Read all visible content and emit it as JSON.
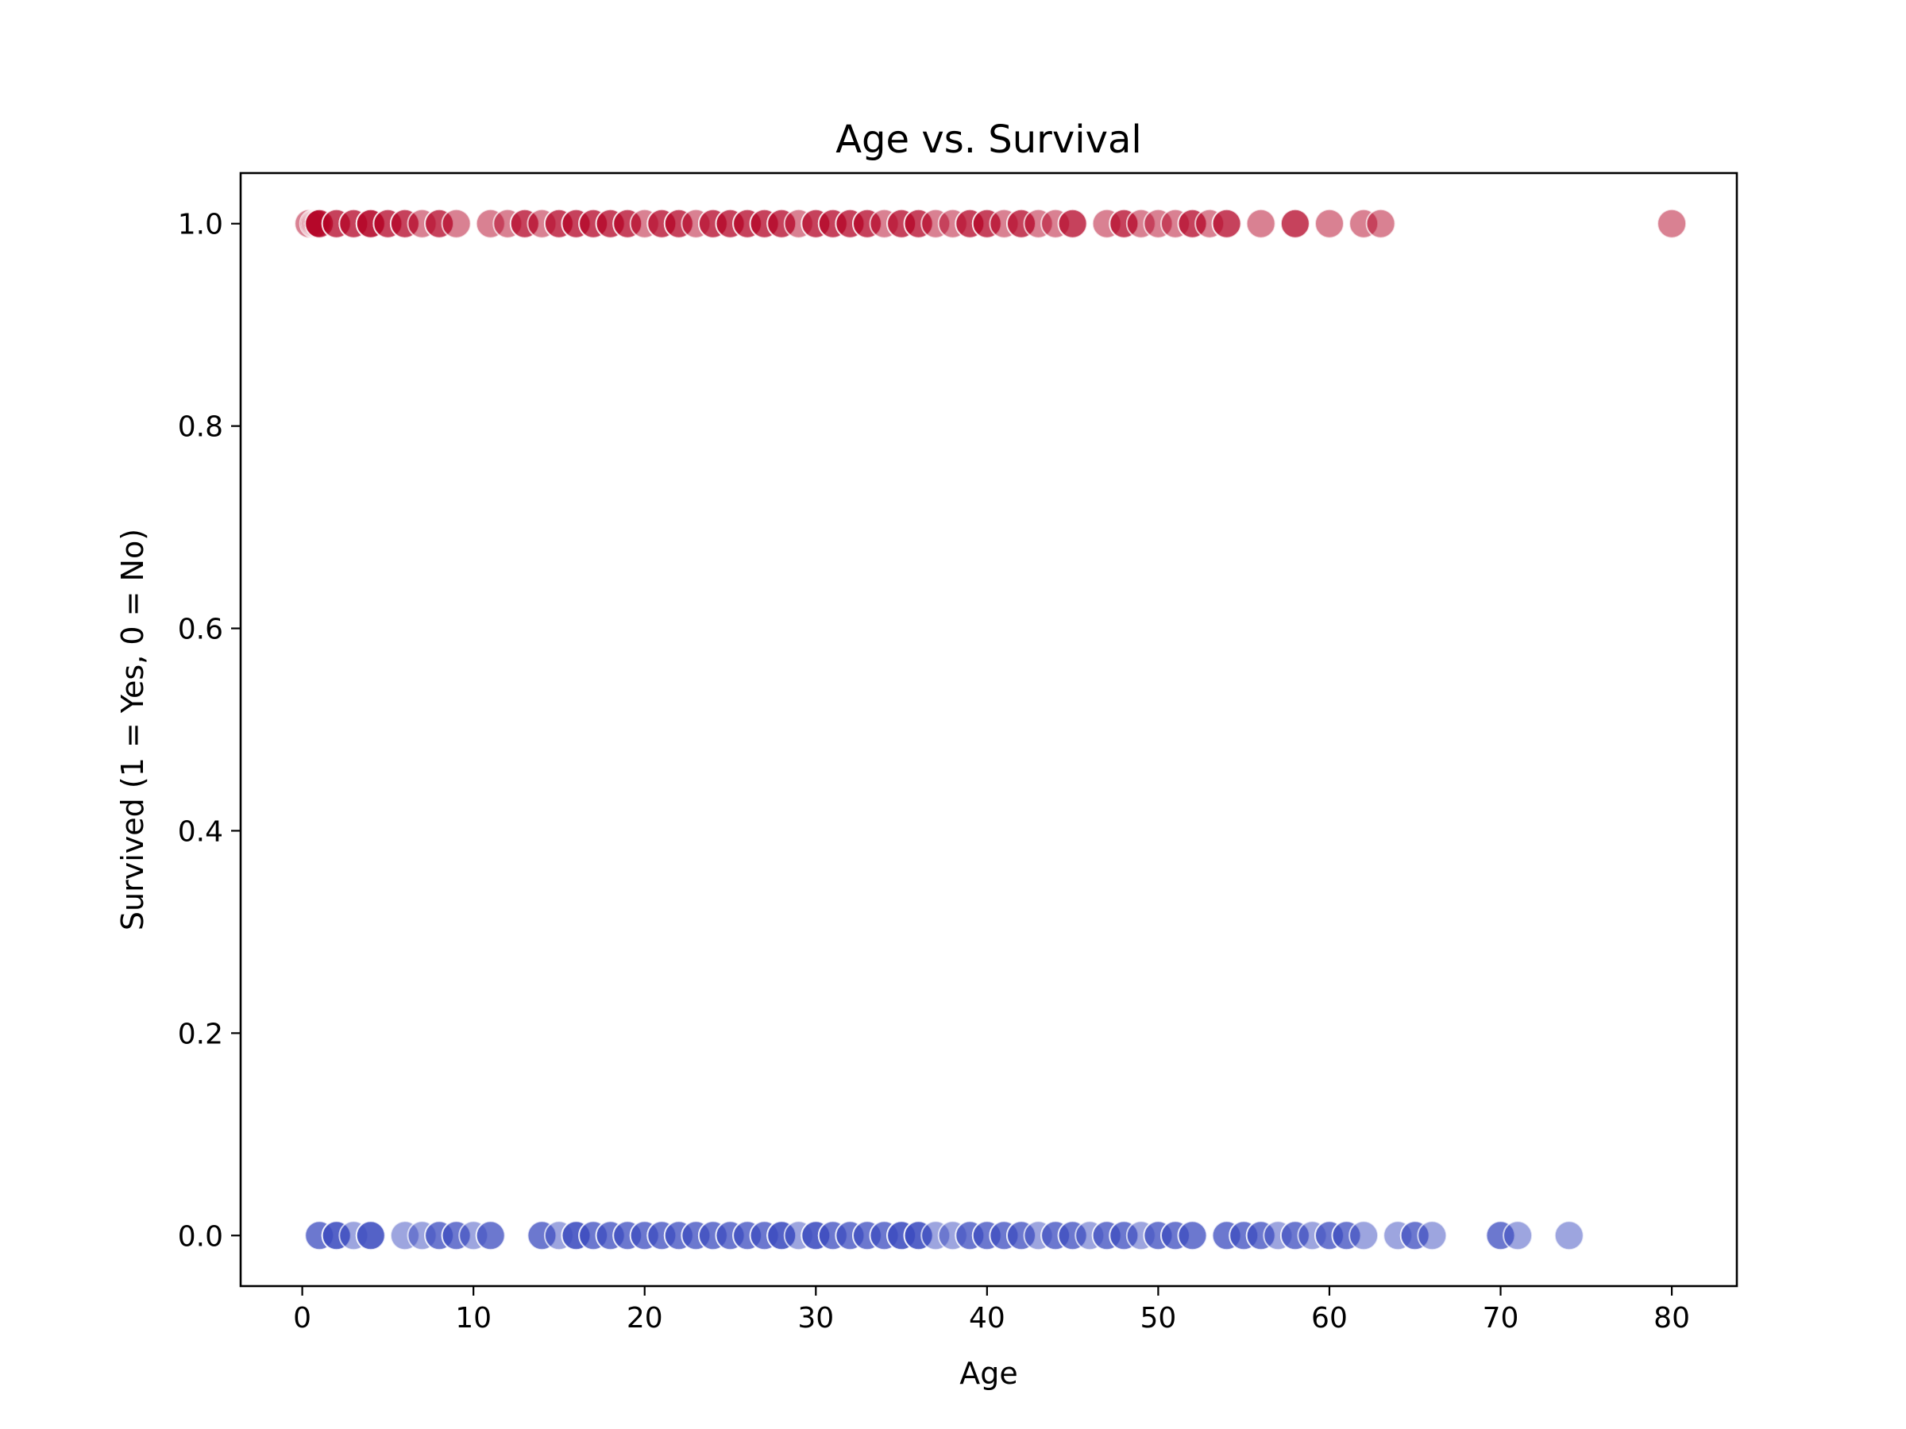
{
  "chart_data": {
    "type": "scatter",
    "title": "Age vs. Survival",
    "xlabel": "Age",
    "ylabel": "Survived (1 = Yes, 0 = No)",
    "xlim": [
      -3.6,
      83.8
    ],
    "ylim": [
      -0.05,
      1.05
    ],
    "xticks": [
      0,
      10,
      20,
      30,
      40,
      50,
      60,
      70,
      80
    ],
    "yticks": [
      0.0,
      0.2,
      0.4,
      0.6,
      0.8,
      1.0
    ],
    "xtick_labels": [
      "0",
      "10",
      "20",
      "30",
      "40",
      "50",
      "60",
      "70",
      "80"
    ],
    "ytick_labels": [
      "0.0",
      "0.2",
      "0.4",
      "0.6",
      "0.8",
      "1.0"
    ],
    "grid": false,
    "legend": false,
    "series": [
      {
        "color": "#3b4cc0",
        "marker_alpha": 0.5,
        "y": 0,
        "x": [
          1,
          1,
          2,
          2,
          2,
          3,
          4,
          4,
          4,
          6,
          7,
          8,
          8,
          9,
          9,
          10,
          11,
          11,
          14,
          14,
          15,
          16,
          16,
          16,
          17,
          17,
          18,
          18,
          19,
          19,
          20,
          20,
          21,
          21,
          22,
          22,
          23,
          23,
          24,
          24,
          25,
          25,
          26,
          26,
          27,
          27,
          28,
          28,
          28,
          29,
          30,
          30,
          30,
          31,
          31,
          32,
          32,
          33,
          33,
          34,
          34,
          35,
          35,
          35,
          36,
          36,
          36,
          37,
          38,
          39,
          39,
          40,
          40,
          41,
          41,
          42,
          42,
          43,
          44,
          44,
          45,
          45,
          46,
          47,
          47,
          48,
          48,
          49,
          50,
          50,
          51,
          51,
          52,
          52,
          54,
          54,
          55,
          55,
          56,
          56,
          57,
          58,
          58,
          59,
          60,
          60,
          61,
          61,
          62,
          64,
          65,
          65,
          66,
          70,
          70,
          71,
          74
        ]
      },
      {
        "color": "#b40426",
        "marker_alpha": 0.5,
        "y": 1,
        "x": [
          0.4,
          0.7,
          0.8,
          0.9,
          1,
          1,
          2,
          2,
          3,
          3,
          4,
          4,
          4,
          5,
          5,
          6,
          6,
          7,
          8,
          8,
          9,
          11,
          12,
          13,
          13,
          14,
          15,
          15,
          16,
          16,
          17,
          17,
          18,
          18,
          19,
          19,
          20,
          21,
          21,
          22,
          22,
          23,
          24,
          24,
          25,
          25,
          26,
          26,
          27,
          27,
          28,
          28,
          29,
          30,
          30,
          31,
          31,
          32,
          32,
          33,
          33,
          34,
          35,
          35,
          36,
          36,
          37,
          38,
          39,
          39,
          40,
          40,
          41,
          42,
          42,
          43,
          44,
          45,
          45,
          47,
          48,
          48,
          49,
          50,
          51,
          52,
          52,
          53,
          54,
          54,
          56,
          58,
          58,
          60,
          62,
          63,
          80
        ]
      }
    ]
  }
}
